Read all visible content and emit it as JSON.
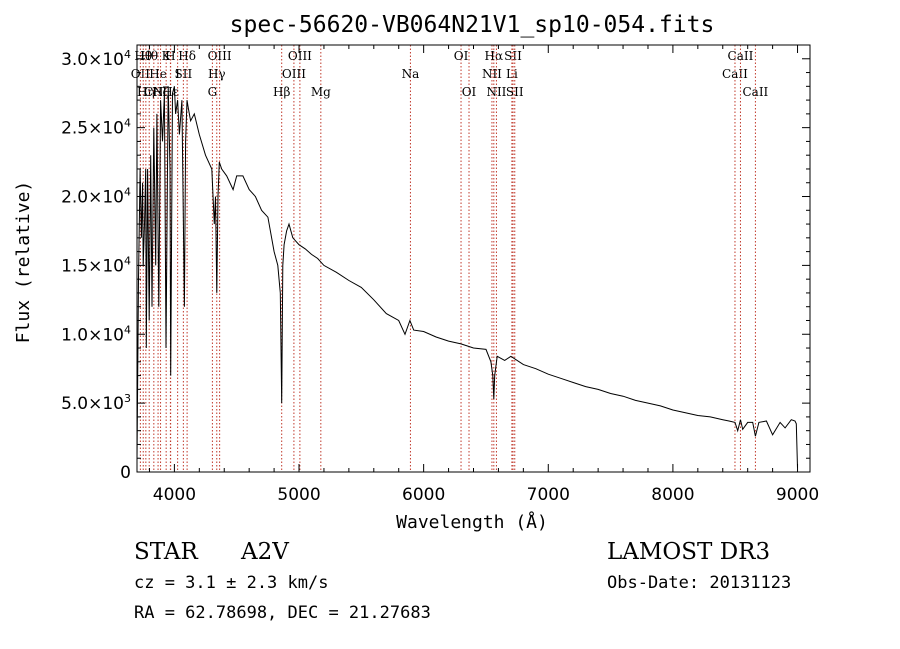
{
  "chart_data": {
    "type": "line",
    "title": "spec-56620-VB064N21V1_sp10-054.fits",
    "xlabel": "Wavelength (Å)",
    "ylabel": "Flux (relative)",
    "xlim": [
      3700,
      9100
    ],
    "ylim": [
      0,
      31000
    ],
    "xticks": [
      {
        "v": 4000,
        "label": "4000"
      },
      {
        "v": 5000,
        "label": "5000"
      },
      {
        "v": 6000,
        "label": "6000"
      },
      {
        "v": 7000,
        "label": "7000"
      },
      {
        "v": 8000,
        "label": "8000"
      },
      {
        "v": 9000,
        "label": "9000"
      }
    ],
    "yticks": [
      {
        "v": 0,
        "mant": "0",
        "exp": ""
      },
      {
        "v": 5000,
        "mant": "5.0×10",
        "exp": "3"
      },
      {
        "v": 10000,
        "mant": "1.0×10",
        "exp": "4"
      },
      {
        "v": 15000,
        "mant": "1.5×10",
        "exp": "4"
      },
      {
        "v": 20000,
        "mant": "2.0×10",
        "exp": "4"
      },
      {
        "v": 25000,
        "mant": "2.5×10",
        "exp": "4"
      },
      {
        "v": 30000,
        "mant": "3.0×10",
        "exp": "4"
      }
    ],
    "series": [
      {
        "name": "flux",
        "x": [
          3700,
          3712,
          3725,
          3735,
          3745,
          3750,
          3760,
          3770,
          3775,
          3785,
          3798,
          3810,
          3820,
          3835,
          3850,
          3860,
          3875,
          3889,
          3905,
          3920,
          3933,
          3950,
          3965,
          3970,
          3985,
          4000,
          4010,
          4026,
          4040,
          4060,
          4080,
          4090,
          4101,
          4110,
          4130,
          4160,
          4200,
          4250,
          4300,
          4320,
          4330,
          4340,
          4350,
          4360,
          4380,
          4420,
          4471,
          4500,
          4550,
          4600,
          4650,
          4700,
          4750,
          4800,
          4830,
          4850,
          4861,
          4870,
          4880,
          4900,
          4920,
          4950,
          5000,
          5050,
          5100,
          5150,
          5200,
          5300,
          5400,
          5500,
          5600,
          5700,
          5800,
          5850,
          5890,
          5920,
          6000,
          6100,
          6200,
          6300,
          6400,
          6500,
          6540,
          6555,
          6563,
          6570,
          6590,
          6650,
          6700,
          6800,
          6900,
          7000,
          7100,
          7200,
          7300,
          7400,
          7500,
          7600,
          7700,
          7800,
          7900,
          8000,
          8100,
          8200,
          8300,
          8400,
          8450,
          8498,
          8520,
          8542,
          8560,
          8600,
          8640,
          8662,
          8690,
          8750,
          8800,
          8860,
          8900,
          8950,
          8980,
          8990,
          9000
        ],
        "y": [
          800,
          14000,
          22000,
          17000,
          21000,
          15000,
          18000,
          22000,
          9000,
          22000,
          11000,
          23000,
          12000,
          25000,
          15000,
          26000,
          12000,
          27000,
          24000,
          27500,
          9000,
          28000,
          22000,
          7000,
          27500,
          28000,
          26000,
          27000,
          24500,
          27000,
          12000,
          24000,
          27000,
          26500,
          25500,
          26000,
          24500,
          23000,
          22000,
          18000,
          20000,
          13000,
          20000,
          22500,
          22000,
          21500,
          20500,
          21500,
          21500,
          20500,
          20000,
          19000,
          18500,
          16000,
          15000,
          13000,
          5000,
          15000,
          16500,
          17500,
          18000,
          17000,
          16500,
          16200,
          15800,
          15500,
          15000,
          14500,
          13900,
          13400,
          12500,
          11500,
          11000,
          10000,
          11000,
          10300,
          10200,
          9800,
          9500,
          9300,
          9000,
          8900,
          8000,
          7000,
          5300,
          7000,
          8400,
          8100,
          8400,
          7800,
          7500,
          7100,
          6800,
          6500,
          6200,
          6000,
          5700,
          5500,
          5200,
          5000,
          4800,
          4500,
          4300,
          4100,
          4000,
          3800,
          3700,
          3600,
          3000,
          3800,
          3100,
          3600,
          3600,
          2600,
          3600,
          3700,
          2700,
          3600,
          3200,
          3800,
          3700,
          3500,
          300
        ]
      }
    ],
    "lines": [
      {
        "x": 3727,
        "label": "OII",
        "row": 1
      },
      {
        "x": 3750,
        "label": "Hθ",
        "row": 0
      },
      {
        "x": 3771,
        "label": "Hη",
        "row": 2
      },
      {
        "x": 3798,
        "label": "Hθ",
        "row": 0
      },
      {
        "x": 3835,
        "label": "CN",
        "row": 2
      },
      {
        "x": 3869,
        "label": "He",
        "row": 1
      },
      {
        "x": 3889,
        "label": "Hζ",
        "row": 2
      },
      {
        "x": 3934,
        "label": "K",
        "row": 0
      },
      {
        "x": 3968,
        "label": "H",
        "row": 0
      },
      {
        "x": 3970,
        "label": "Hε",
        "row": 2
      },
      {
        "x": 4026,
        "label": "I",
        "row": 1
      },
      {
        "x": 4072,
        "label": "SII",
        "row": 1
      },
      {
        "x": 4102,
        "label": "Hδ",
        "row": 0
      },
      {
        "x": 4305,
        "label": "G",
        "row": 2
      },
      {
        "x": 4340,
        "label": "Hγ",
        "row": 1
      },
      {
        "x": 4363,
        "label": "OIII",
        "row": 0
      },
      {
        "x": 4861,
        "label": "Hβ",
        "row": 2
      },
      {
        "x": 4959,
        "label": "OIII",
        "row": 1
      },
      {
        "x": 5007,
        "label": "OIII",
        "row": 0
      },
      {
        "x": 5175,
        "label": "Mg",
        "row": 2
      },
      {
        "x": 5894,
        "label": "Na",
        "row": 1
      },
      {
        "x": 6300,
        "label": "OI",
        "row": 0
      },
      {
        "x": 6364,
        "label": "OI",
        "row": 2
      },
      {
        "x": 6548,
        "label": "NII",
        "row": 1
      },
      {
        "x": 6563,
        "label": "Hα",
        "row": 0
      },
      {
        "x": 6584,
        "label": "NII",
        "row": 2
      },
      {
        "x": 6708,
        "label": "Li",
        "row": 1
      },
      {
        "x": 6717,
        "label": "SII",
        "row": 0
      },
      {
        "x": 6731,
        "label": "SII",
        "row": 2
      },
      {
        "x": 8498,
        "label": "CaII",
        "row": 1
      },
      {
        "x": 8542,
        "label": "CaII",
        "row": 0
      },
      {
        "x": 8662,
        "label": "CaII",
        "row": 2
      }
    ]
  },
  "info": {
    "object_class": "STAR",
    "subclass": "A2V",
    "survey": "LAMOST DR3",
    "cz": "cz = 3.1 ± 2.3 km/s",
    "obs_date": "Obs-Date: 20131123",
    "coords": "RA =  62.78698, DEC =  21.27683"
  }
}
